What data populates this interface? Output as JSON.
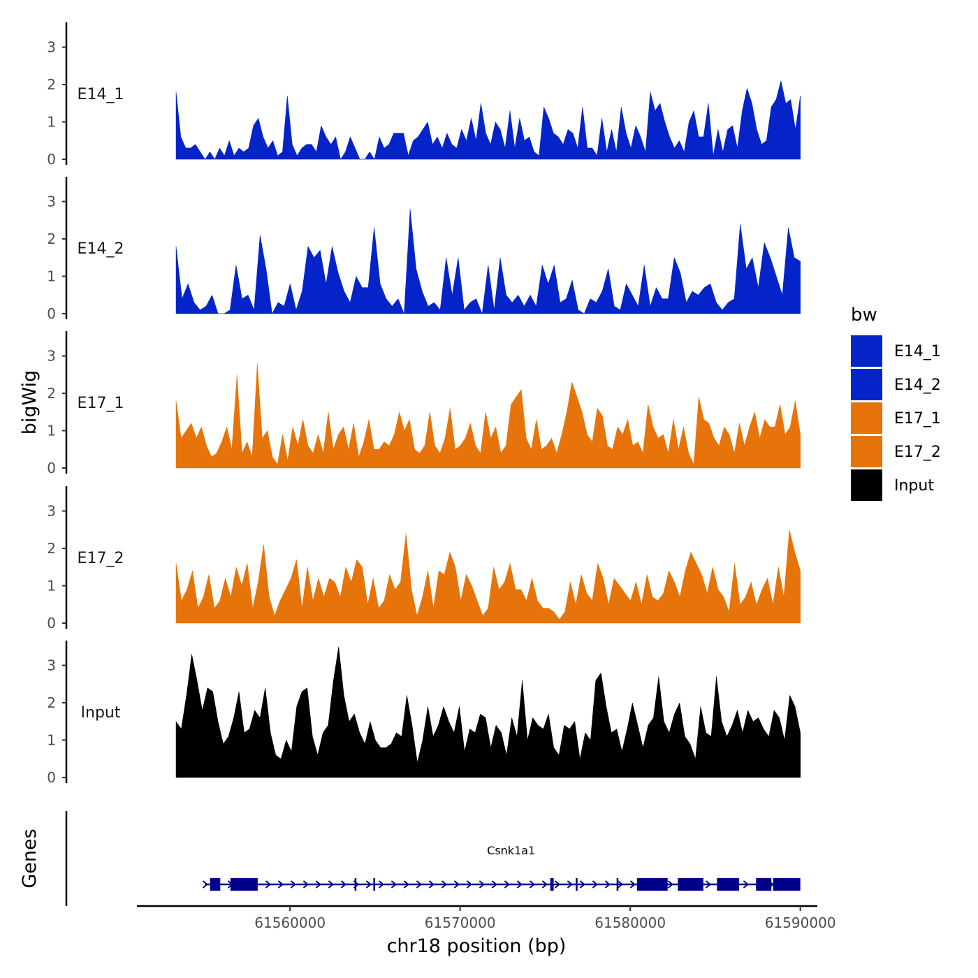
{
  "chart_data": {
    "type": "area",
    "ylabel": "bigWig",
    "xlabel": "chr18 position (bp)",
    "xlim": [
      61551000,
      61591000
    ],
    "x_data_range": [
      61553300,
      61590000
    ],
    "ylim": [
      0,
      3.6
    ],
    "yticks": [
      "0",
      "1",
      "2",
      "3"
    ],
    "xticks": [
      "61560000",
      "61570000",
      "61580000",
      "61590000"
    ],
    "xtick_values": [
      61560000,
      61570000,
      61580000,
      61590000
    ],
    "legend": {
      "title": "bw",
      "entries": [
        {
          "name": "E14_1",
          "color": "#0424C9"
        },
        {
          "name": "E14_2",
          "color": "#0424C9"
        },
        {
          "name": "E17_1",
          "color": "#E6740A"
        },
        {
          "name": "E17_2",
          "color": "#E6740A"
        },
        {
          "name": "Input",
          "color": "#000000"
        }
      ]
    },
    "tracks": [
      {
        "name": "E14_1",
        "color": "#0424C9",
        "values": [
          1.8,
          0.6,
          0.3,
          0.3,
          0.4,
          0.2,
          0,
          0.2,
          0,
          0.3,
          0.1,
          0.5,
          0.1,
          0.3,
          0.2,
          0.3,
          0.9,
          1.1,
          0.6,
          0.3,
          0.5,
          0.1,
          0.2,
          1.7,
          0.4,
          0.1,
          0.3,
          0.4,
          0.4,
          0.2,
          0.9,
          0.6,
          0.4,
          0.6,
          0,
          0.2,
          0.6,
          0.3,
          0,
          0,
          0.2,
          0,
          0.6,
          0.3,
          0.4,
          0.7,
          0.7,
          0.7,
          0.1,
          0.5,
          0.6,
          0.8,
          1.0,
          0.4,
          0.6,
          0.3,
          0.7,
          0.4,
          0.3,
          0.8,
          0.5,
          1.1,
          0.5,
          1.5,
          0.7,
          0.4,
          1.0,
          0.8,
          0.3,
          1.3,
          0.3,
          1.1,
          0.5,
          0.6,
          0.2,
          0.1,
          1.4,
          1.1,
          0.7,
          0.6,
          0.4,
          0.8,
          0.7,
          0.3,
          1.4,
          0.3,
          0.3,
          0.1,
          1.1,
          0.2,
          0.8,
          0.2,
          1.4,
          0.7,
          0.3,
          0.9,
          0.6,
          0.2,
          1.8,
          1.3,
          1.5,
          1.0,
          0.6,
          0.3,
          0.5,
          0.2,
          1.0,
          1.3,
          0.6,
          0.6,
          1.5,
          0.1,
          0.8,
          0.2,
          0.8,
          0.9,
          0.3,
          1.3,
          1.9,
          1.5,
          0.8,
          0.4,
          0.5,
          1.4,
          1.6,
          2.1,
          1.5,
          1.6,
          0.8,
          1.7
        ]
      },
      {
        "name": "E14_2",
        "color": "#0424C9",
        "values": [
          1.8,
          0.4,
          0.8,
          0.3,
          0.1,
          0.2,
          0.5,
          0,
          0,
          0.1,
          1.3,
          0.4,
          0.5,
          0.1,
          2.1,
          1.2,
          0,
          0.3,
          0.2,
          0.8,
          0.1,
          0.6,
          1.8,
          1.5,
          1.7,
          0.8,
          1.8,
          1.1,
          0.6,
          0.3,
          1.0,
          0.7,
          0.7,
          2.3,
          0.8,
          0.4,
          0.2,
          0.4,
          0,
          2.8,
          1.2,
          0.6,
          0.2,
          0.3,
          0.1,
          1.5,
          0.5,
          1.5,
          0.1,
          0.3,
          0.4,
          0,
          1.3,
          0.1,
          1.5,
          0.5,
          0.3,
          0.5,
          0.2,
          0.5,
          0.2,
          1.3,
          0.8,
          1.3,
          0.3,
          0.4,
          0.9,
          0.1,
          0,
          0.4,
          0.3,
          0.6,
          1.2,
          0.2,
          0.1,
          0.8,
          0.5,
          0.2,
          1.3,
          0.2,
          0.7,
          0.4,
          0.4,
          1.5,
          1.1,
          0.3,
          0.6,
          0.5,
          0.7,
          0.8,
          0.3,
          0.1,
          0.3,
          0.4,
          2.4,
          1.2,
          1.5,
          0.7,
          1.9,
          1.5,
          1.0,
          0.5,
          2.3,
          1.5,
          1.4
        ]
      },
      {
        "name": "E17_1",
        "color": "#E6740A",
        "values": [
          1.8,
          0.8,
          1.0,
          1.2,
          0.8,
          1.1,
          0.6,
          0.3,
          0.4,
          0.7,
          1.1,
          0.5,
          2.5,
          0.4,
          0.7,
          0.3,
          2.8,
          0.8,
          1.0,
          0.3,
          0.1,
          0.9,
          0.2,
          1.1,
          0.6,
          1.3,
          0.6,
          0.4,
          0.9,
          0.4,
          1.5,
          0.5,
          0.9,
          1.1,
          0.5,
          1.2,
          0.3,
          0.7,
          1.3,
          0.5,
          0.5,
          0.7,
          0.6,
          0.9,
          1.5,
          1.0,
          1.3,
          0.5,
          0.4,
          0.6,
          1.5,
          0.6,
          0.4,
          0.8,
          1.6,
          0.5,
          0.6,
          0.8,
          1.2,
          0.6,
          0.4,
          1.5,
          0.8,
          1.1,
          0.4,
          0.6,
          1.7,
          1.9,
          2.1,
          0.8,
          0.5,
          1.3,
          0.5,
          0.6,
          0.8,
          0.4,
          0.9,
          1.5,
          2.3,
          1.9,
          1.5,
          0.9,
          0.7,
          1.6,
          1.4,
          0.6,
          0.5,
          1.1,
          0.9,
          1.3,
          0.6,
          0.7,
          0.4,
          1.7,
          1.1,
          0.8,
          0.9,
          0.4,
          1.3,
          0.5,
          1.1,
          0.4,
          0.1,
          1.9,
          1.3,
          1.2,
          0.8,
          0.6,
          1.1,
          0.9,
          0.4,
          1.2,
          0.6,
          1.1,
          1.5,
          0.8,
          1.3,
          1.1,
          1.1,
          1.7,
          0.9,
          1.1,
          1.8,
          0.9
        ]
      },
      {
        "name": "E17_2",
        "color": "#E6740A",
        "values": [
          1.6,
          0.6,
          0.9,
          1.4,
          0.4,
          0.7,
          1.3,
          0.4,
          0.6,
          1.2,
          0.7,
          1.5,
          1.0,
          1.6,
          0.4,
          1.1,
          2.1,
          0.7,
          0.2,
          0.6,
          0.9,
          1.2,
          1.7,
          0.4,
          1.5,
          0.6,
          1.2,
          0.7,
          1.2,
          1.1,
          0.7,
          1.5,
          1.1,
          1.7,
          1.5,
          0.5,
          1.2,
          0.4,
          0.6,
          1.3,
          0.9,
          1.1,
          2.4,
          0.9,
          0.2,
          0.7,
          1.4,
          0.4,
          1.4,
          1.3,
          1.9,
          1.5,
          0.6,
          1.3,
          1.0,
          0.6,
          0.2,
          0.4,
          1.5,
          0.9,
          1.1,
          1.6,
          0.9,
          0.9,
          0.6,
          1.2,
          0.6,
          0.4,
          0.4,
          0.3,
          0.1,
          0.3,
          1.1,
          0.5,
          1.3,
          0.8,
          0.6,
          1.6,
          1.2,
          0.5,
          1.2,
          1.0,
          0.8,
          0.6,
          1.1,
          0.5,
          1.3,
          0.7,
          0.6,
          0.8,
          1.4,
          1.1,
          0.7,
          1.4,
          1.9,
          1.6,
          1.3,
          0.8,
          1.5,
          0.9,
          0.7,
          0.3,
          1.6,
          0.5,
          0.7,
          1.1,
          0.5,
          0.9,
          1.2,
          0.5,
          1.5,
          0.7,
          2.5,
          1.9,
          1.4
        ]
      },
      {
        "name": "Input",
        "color": "#000000",
        "values": [
          1.5,
          1.3,
          2.2,
          3.3,
          2.6,
          1.8,
          2.4,
          2.3,
          1.5,
          0.9,
          1.1,
          1.6,
          2.3,
          1.2,
          1.3,
          1.8,
          1.6,
          2.4,
          1.2,
          0.6,
          0.5,
          1.0,
          0.7,
          1.9,
          2.3,
          2.4,
          1.1,
          0.6,
          1.2,
          1.4,
          2.6,
          3.5,
          2.2,
          1.5,
          1.7,
          1.2,
          0.9,
          1.5,
          1.0,
          0.8,
          0.8,
          0.9,
          1.2,
          1.1,
          2.2,
          1.4,
          0.4,
          1.0,
          1.9,
          1.1,
          1.4,
          1.9,
          1.5,
          1.2,
          1.9,
          0.7,
          1.3,
          1.2,
          1.7,
          1.6,
          0.8,
          1.4,
          1.2,
          0.6,
          1.6,
          1.1,
          2.6,
          1.0,
          1.6,
          1.4,
          1.3,
          1.7,
          0.8,
          0.6,
          1.4,
          1.3,
          1.5,
          0.5,
          1.2,
          1.0,
          2.6,
          2.8,
          1.9,
          1.2,
          1.3,
          0.7,
          1.3,
          2.0,
          1.4,
          0.8,
          1.4,
          1.6,
          2.7,
          1.5,
          1.2,
          1.7,
          2.0,
          1.1,
          0.9,
          0.5,
          1.9,
          1.2,
          1.1,
          2.7,
          1.5,
          1.1,
          1.4,
          1.8,
          1.2,
          1.8,
          1.5,
          1.6,
          1.3,
          1.1,
          1.8,
          1.6,
          1.0,
          2.2,
          1.9,
          1.2
        ]
      }
    ],
    "genes": {
      "title": "Genes",
      "name": "Csnk1a1",
      "start": 61555000,
      "end": 61590000,
      "strand": "+",
      "exons": [
        [
          61555300,
          61555900
        ],
        [
          61556500,
          61558100
        ],
        [
          61563800,
          61563900
        ],
        [
          61564900,
          61565000
        ],
        [
          61575300,
          61575500
        ],
        [
          61576800,
          61576900
        ],
        [
          61579200,
          61579300
        ],
        [
          61580400,
          61582200
        ],
        [
          61582800,
          61584300
        ],
        [
          61585100,
          61586400
        ],
        [
          61587400,
          61588300
        ],
        [
          61588400,
          61590000
        ]
      ]
    }
  }
}
